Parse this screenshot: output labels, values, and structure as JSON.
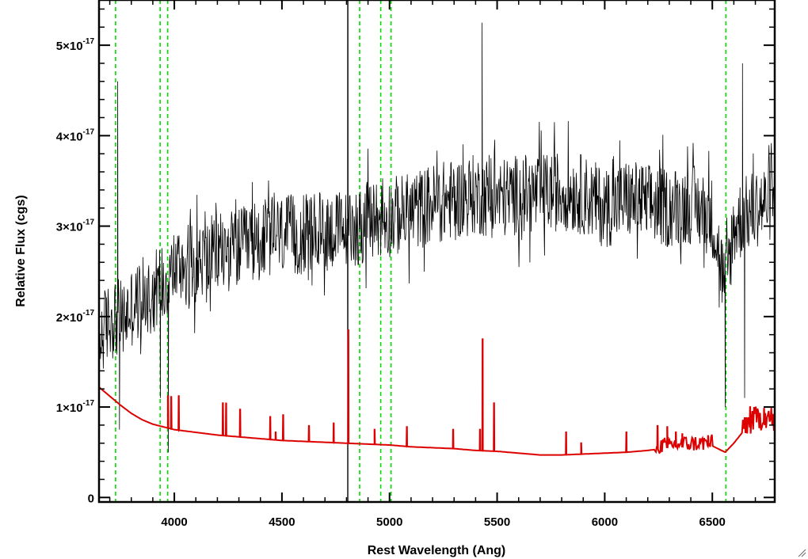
{
  "chart_data": {
    "type": "line",
    "title": "",
    "xlabel": "Rest Wavelength (Ang)",
    "ylabel": "Relative Flux (cgs)",
    "xlim": [
      3650,
      6790
    ],
    "ylim": [
      -5e-19,
      5.5e-17
    ],
    "grid": false,
    "legend": "none",
    "x_ticks": [
      4000,
      4500,
      5000,
      5500,
      6000,
      6500
    ],
    "x_tick_labels": [
      "4000",
      "4500",
      "5000",
      "5500",
      "6000",
      "6500"
    ],
    "y_ticks": [
      0,
      1e-17,
      2e-17,
      3e-17,
      4e-17,
      5e-17
    ],
    "y_tick_labels": [
      {
        "mantissa": "0",
        "exponent": ""
      },
      {
        "mantissa": "1×10",
        "exponent": "-17"
      },
      {
        "mantissa": "2×10",
        "exponent": "-17"
      },
      {
        "mantissa": "3×10",
        "exponent": "-17"
      },
      {
        "mantissa": "4×10",
        "exponent": "-17"
      },
      {
        "mantissa": "5×10",
        "exponent": "-17"
      }
    ],
    "marker_lines": {
      "color": "#00dd00",
      "style": "dashed",
      "x": [
        3727,
        3934,
        3969,
        4861,
        4959,
        5007,
        6563
      ]
    },
    "reference_line": {
      "color": "#000000",
      "x": 4806
    },
    "series": [
      {
        "color": "#000000",
        "kind": "observed-spectrum",
        "x": [
          3650,
          3680,
          3720,
          3760,
          3800,
          3850,
          3900,
          3950,
          4000,
          4100,
          4200,
          4300,
          4400,
          4500,
          4600,
          4700,
          4800,
          4900,
          5000,
          5100,
          5200,
          5300,
          5400,
          5500,
          5600,
          5700,
          5800,
          5900,
          6000,
          6100,
          6200,
          6300,
          6400,
          6500,
          6560,
          6600,
          6700,
          6790
        ],
        "y": [
          1.7e-17,
          1.9e-17,
          2e-17,
          1.95e-17,
          2.1e-17,
          2.2e-17,
          2.3e-17,
          2.4e-17,
          2.55e-17,
          2.6e-17,
          2.7e-17,
          2.75e-17,
          2.85e-17,
          2.9e-17,
          2.9e-17,
          2.95e-17,
          2.95e-17,
          3.05e-17,
          3.1e-17,
          3.15e-17,
          3.25e-17,
          3.3e-17,
          3.35e-17,
          3.3e-17,
          3.35e-17,
          3.35e-17,
          3.4e-17,
          3.35e-17,
          3.2e-17,
          3.3e-17,
          3.25e-17,
          3.2e-17,
          3.25e-17,
          3.1e-17,
          2.3e-17,
          3e-17,
          3.2e-17,
          3.3e-17
        ],
        "noise_amplitude": 4.5e-18,
        "spikes": [
          {
            "x": 3737,
            "y": 4.6e-17
          },
          {
            "x": 3745,
            "y": 7.5e-18
          },
          {
            "x": 3935,
            "y": 1.1e-17
          },
          {
            "x": 3972,
            "y": 5e-18
          },
          {
            "x": 4806,
            "y": -5e-19
          },
          {
            "x": 4806.5,
            "y": 5.5e-17
          },
          {
            "x": 5430,
            "y": 5.25e-17
          },
          {
            "x": 6560,
            "y": 1e-17
          },
          {
            "x": 6640,
            "y": 4.8e-17
          },
          {
            "x": 6650,
            "y": 1.1e-17
          }
        ]
      },
      {
        "color": "#dd0000",
        "kind": "model-continuum",
        "x": [
          3650,
          3700,
          3750,
          3800,
          3850,
          3900,
          3950,
          4000,
          4100,
          4200,
          4300,
          4400,
          4500,
          4600,
          4700,
          4800,
          4900,
          5000,
          5100,
          5200,
          5300,
          5400,
          5500,
          5600,
          5700,
          5800,
          5900,
          6000,
          6100,
          6200,
          6300,
          6400,
          6500,
          6560,
          6600,
          6650,
          6700,
          6750,
          6790
        ],
        "y": [
          1.22e-17,
          1.12e-17,
          1.02e-17,
          9.3e-18,
          8.6e-18,
          8.1e-18,
          7.8e-18,
          7.5e-18,
          7.2e-18,
          6.9e-18,
          6.7e-18,
          6.5e-18,
          6.3e-18,
          6.2e-18,
          6.1e-18,
          6e-18,
          5.9e-18,
          5.8e-18,
          5.6e-18,
          5.5e-18,
          5.4e-18,
          5.2e-18,
          5.1e-18,
          4.9e-18,
          4.7e-18,
          4.7e-18,
          4.8e-18,
          4.9e-18,
          5e-18,
          5.2e-18,
          5.5e-18,
          5.6e-18,
          5.7e-18,
          5e-18,
          6e-18,
          7.5e-18,
          8e-18,
          8.5e-18,
          7.8e-18
        ],
        "emission_lines": [
          {
            "x": 3970,
            "y": 1.12e-17
          },
          {
            "x": 3985,
            "y": 1.12e-17
          },
          {
            "x": 4020,
            "y": 1.12e-17
          },
          {
            "x": 4225,
            "y": 1.05e-17
          },
          {
            "x": 4240,
            "y": 1.04e-17
          },
          {
            "x": 4305,
            "y": 9.8e-18
          },
          {
            "x": 4445,
            "y": 9e-18
          },
          {
            "x": 4470,
            "y": 7.2e-18
          },
          {
            "x": 4505,
            "y": 9.2e-18
          },
          {
            "x": 4625,
            "y": 8e-18
          },
          {
            "x": 4740,
            "y": 8.2e-18
          },
          {
            "x": 4808,
            "y": 1.85e-17
          },
          {
            "x": 4930,
            "y": 7.5e-18
          },
          {
            "x": 5080,
            "y": 7.8e-18
          },
          {
            "x": 5295,
            "y": 7.5e-18
          },
          {
            "x": 5420,
            "y": 7.5e-18
          },
          {
            "x": 5432,
            "y": 1.75e-17
          },
          {
            "x": 5485,
            "y": 1.05e-17
          },
          {
            "x": 5820,
            "y": 7.2e-18
          },
          {
            "x": 5890,
            "y": 6e-18
          },
          {
            "x": 6100,
            "y": 7.2e-18
          },
          {
            "x": 6245,
            "y": 8e-18
          },
          {
            "x": 6290,
            "y": 7.8e-18
          },
          {
            "x": 6330,
            "y": 7.2e-18
          },
          {
            "x": 6360,
            "y": 7e-18
          },
          {
            "x": 6480,
            "y": 6.8e-18
          },
          {
            "x": 6675,
            "y": 1e-17
          },
          {
            "x": 6740,
            "y": 9.8e-18
          }
        ]
      }
    ]
  }
}
